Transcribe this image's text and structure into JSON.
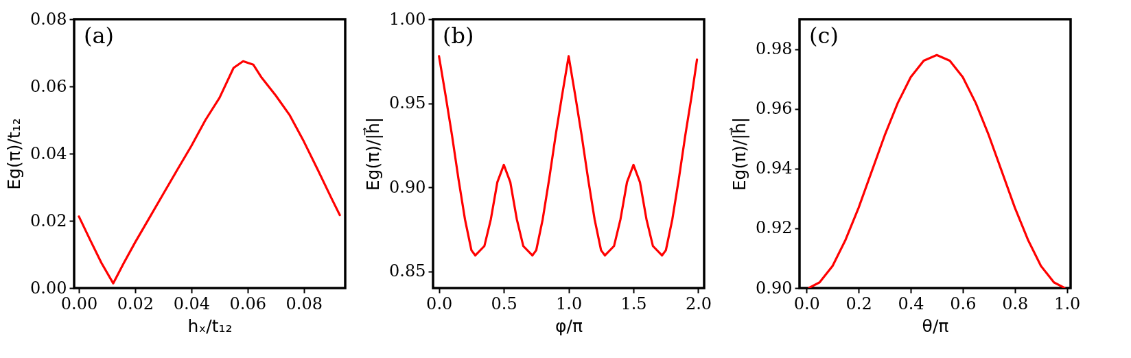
{
  "chart_data": [
    {
      "type": "line",
      "xlabel": "hₓ/t₁₂",
      "ylabel": "Eg(π)/t₁₂",
      "annotations": [
        "(a)"
      ],
      "grid": false,
      "marker": "none",
      "line_style": "solid",
      "xlim": [
        -0.0017,
        0.0947
      ],
      "ylim": [
        0,
        0.08
      ],
      "xticks": [
        {
          "value": 0,
          "label": "0.00"
        },
        0.02,
        0.04,
        0.06,
        0.08
      ],
      "yticks": [
        {
          "value": 0,
          "label": "0.00"
        },
        0.02,
        0.04,
        0.06,
        0.08
      ],
      "series": [
        {
          "color": "#ff0000",
          "x": [
            0,
            0.004,
            0.008,
            0.0122,
            0.016,
            0.02,
            0.025,
            0.03,
            0.035,
            0.04,
            0.045,
            0.05,
            0.055,
            0.0584,
            0.062,
            0.065,
            0.07,
            0.075,
            0.08,
            0.085,
            0.09,
            0.0928
          ],
          "values": [
            0.0213,
            0.0143,
            0.0075,
            0.0014,
            0.0075,
            0.0136,
            0.0208,
            0.028,
            0.0352,
            0.0423,
            0.05,
            0.0566,
            0.0655,
            0.0675,
            0.0665,
            0.0626,
            0.0573,
            0.0514,
            0.0436,
            0.0351,
            0.0264,
            0.0217
          ]
        }
      ]
    },
    {
      "type": "line",
      "xlabel": "φ/π",
      "ylabel": "Eg(π)/|h⃗|",
      "annotations": [
        "(b)"
      ],
      "grid": false,
      "marker": "none",
      "line_style": "solid",
      "xlim": [
        -0.046,
        2.045
      ],
      "ylim": [
        0.84,
        1.0
      ],
      "xticks": [
        {
          "value": 0,
          "label": "0.0"
        },
        0.5,
        {
          "value": 1,
          "label": "1.0"
        },
        1.5,
        {
          "value": 2,
          "label": "2.0"
        }
      ],
      "yticks": [
        0.85,
        {
          "value": 0.9,
          "label": "0.90"
        },
        0.95,
        {
          "value": 1.0,
          "label": "1.00"
        }
      ],
      "series": [
        {
          "color": "#ff0000",
          "x": [
            0,
            0.05,
            0.1,
            0.15,
            0.2,
            0.25,
            0.28,
            0.35,
            0.4,
            0.45,
            0.5,
            0.55,
            0.6,
            0.65,
            0.72,
            0.75,
            0.8,
            0.85,
            0.9,
            0.95,
            1.0,
            1.05,
            1.1,
            1.15,
            1.2,
            1.25,
            1.28,
            1.35,
            1.4,
            1.45,
            1.5,
            1.55,
            1.6,
            1.65,
            1.72,
            1.75,
            1.8,
            1.85,
            1.9,
            1.95,
            1.99
          ],
          "values": [
            0.978,
            0.955,
            0.931,
            0.905,
            0.881,
            0.8625,
            0.8594,
            0.865,
            0.881,
            0.903,
            0.9133,
            0.903,
            0.881,
            0.865,
            0.8594,
            0.8625,
            0.881,
            0.905,
            0.931,
            0.955,
            0.978,
            0.955,
            0.931,
            0.905,
            0.881,
            0.8625,
            0.8594,
            0.865,
            0.881,
            0.903,
            0.9133,
            0.903,
            0.881,
            0.865,
            0.8594,
            0.8625,
            0.881,
            0.905,
            0.931,
            0.955,
            0.976
          ]
        }
      ]
    },
    {
      "type": "line",
      "xlabel": "θ/π",
      "ylabel": "Eg(π)/|h⃗|",
      "annotations": [
        "(c)"
      ],
      "grid": false,
      "marker": "none",
      "line_style": "solid",
      "xlim": [
        -0.027,
        1.014
      ],
      "ylim": [
        0.9,
        0.99
      ],
      "xticks": [
        {
          "value": 0,
          "label": "0.0"
        },
        0.2,
        0.4,
        0.6,
        0.8,
        {
          "value": 1,
          "label": "1.0"
        }
      ],
      "yticks": [
        {
          "value": 0.9,
          "label": "0.90"
        },
        0.92,
        0.94,
        0.96,
        0.98
      ],
      "series": [
        {
          "color": "#ff0000",
          "x": [
            0.01,
            0.05,
            0.1,
            0.15,
            0.2,
            0.25,
            0.3,
            0.35,
            0.4,
            0.45,
            0.5,
            0.55,
            0.6,
            0.65,
            0.7,
            0.75,
            0.8,
            0.85,
            0.9,
            0.95,
            0.99
          ],
          "values": [
            0.9001,
            0.9019,
            0.9074,
            0.9162,
            0.9269,
            0.939,
            0.9511,
            0.9619,
            0.9706,
            0.9761,
            0.978,
            0.9761,
            0.9706,
            0.9619,
            0.9511,
            0.939,
            0.9269,
            0.9162,
            0.9074,
            0.9019,
            0.9001
          ]
        }
      ]
    }
  ]
}
